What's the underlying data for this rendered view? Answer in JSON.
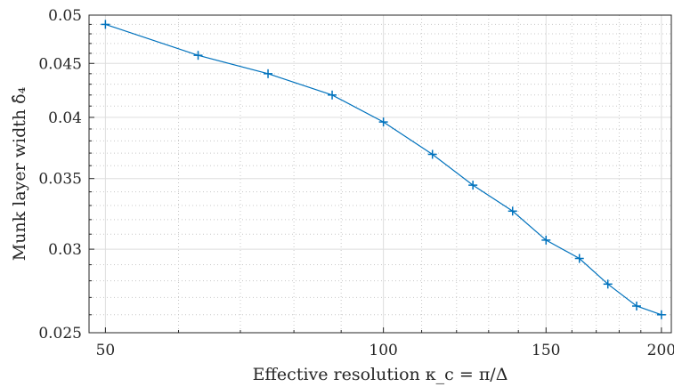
{
  "chart_data": {
    "type": "line",
    "xscale": "log",
    "yscale": "log",
    "xlim": [
      48,
      205
    ],
    "ylim": [
      0.025,
      0.05
    ],
    "xticks": [
      50,
      100,
      150,
      200
    ],
    "xtick_labels": [
      "50",
      "100",
      "150",
      "200"
    ],
    "yticks": [
      0.025,
      0.03,
      0.035,
      0.04,
      0.045,
      0.05
    ],
    "ytick_labels": [
      "0.025",
      "0.03",
      "0.035",
      "0.04",
      "0.045",
      "0.05"
    ],
    "x_minor_ticks": [
      60,
      70,
      80,
      90,
      110,
      120,
      130,
      140,
      160,
      170,
      180,
      190
    ],
    "y_minor_ticks": [
      0.026,
      0.027,
      0.028,
      0.029,
      0.031,
      0.032,
      0.033,
      0.034,
      0.036,
      0.037,
      0.038,
      0.039,
      0.041,
      0.042,
      0.043,
      0.044,
      0.046,
      0.047,
      0.048,
      0.049
    ],
    "xlabel": "Effective resolution κ_c = π/Δ",
    "ylabel": "Munk layer width δ̂₄",
    "grid": true,
    "color": "#0072BD",
    "marker": "plus",
    "series": [
      {
        "x": [
          50,
          63,
          75,
          88,
          100,
          113,
          125,
          138,
          150,
          163,
          175,
          188,
          200
        ],
        "y": [
          0.049,
          0.0458,
          0.044,
          0.042,
          0.0396,
          0.0369,
          0.0345,
          0.0326,
          0.0306,
          0.0294,
          0.0278,
          0.0265,
          0.026
        ]
      }
    ]
  }
}
